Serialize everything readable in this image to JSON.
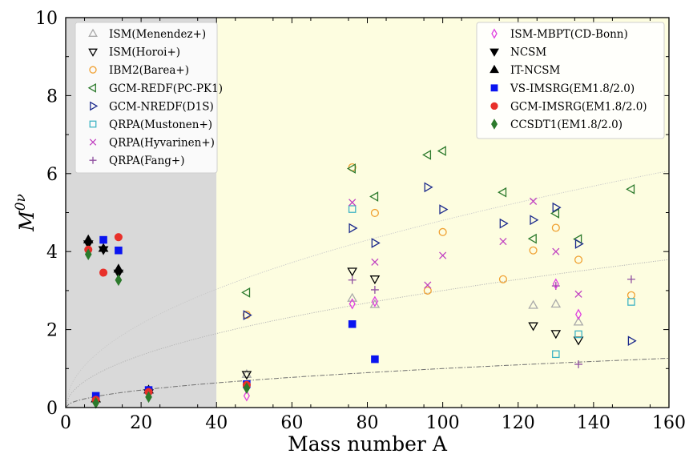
{
  "chart_data": {
    "type": "scatter",
    "title": "",
    "xlabel": "Mass number A",
    "ylabel": "M",
    "ylabel_sup": "0ν",
    "xlim": [
      0,
      160
    ],
    "ylim": [
      0,
      10
    ],
    "xticks": [
      0,
      20,
      40,
      60,
      80,
      100,
      120,
      140,
      160
    ],
    "yticks": [
      0,
      2,
      4,
      6,
      8,
      10
    ],
    "grid": false,
    "regions": [
      {
        "x": [
          0,
          40
        ],
        "color": "#d9d9d9"
      },
      {
        "x": [
          40,
          160
        ],
        "color": "#fdfde0"
      }
    ],
    "legends": [
      "top-left",
      "top-right"
    ],
    "curves": [
      {
        "coef": 0.48,
        "style": "dotted",
        "color": "#c8c8c8"
      },
      {
        "coef": 0.3,
        "style": "dotted",
        "color": "#b4b4b4"
      },
      {
        "coef": 0.1,
        "style": "dashdot",
        "color": "#707070"
      }
    ],
    "series": [
      {
        "name": "ISM(Menendez+)",
        "legend": 0,
        "marker": "tri-up-open",
        "color": "#a9a9a9",
        "points": [
          [
            48,
            0.85
          ],
          [
            76,
            2.8
          ],
          [
            82,
            2.64
          ],
          [
            124,
            2.62
          ],
          [
            130,
            2.65
          ],
          [
            136,
            2.19
          ]
        ]
      },
      {
        "name": "ISM(Horoi+)",
        "legend": 0,
        "marker": "tri-down-open",
        "color": "#000000",
        "points": [
          [
            48,
            0.85
          ],
          [
            76,
            3.5
          ],
          [
            82,
            3.3
          ],
          [
            124,
            2.1
          ],
          [
            130,
            1.9
          ],
          [
            136,
            1.73
          ]
        ]
      },
      {
        "name": "IBM2(Barea+)",
        "legend": 0,
        "marker": "circle-open",
        "color": "#f0a030",
        "points": [
          [
            48,
            2.38
          ],
          [
            76,
            6.16
          ],
          [
            82,
            4.99
          ],
          [
            96,
            3.0
          ],
          [
            100,
            4.5
          ],
          [
            116,
            3.29
          ],
          [
            124,
            4.03
          ],
          [
            130,
            4.61
          ],
          [
            136,
            3.79
          ],
          [
            150,
            2.88
          ]
        ]
      },
      {
        "name": "GCM-REDF(PC-PK1)",
        "legend": 0,
        "marker": "tri-left-open",
        "color": "#2c7a2c",
        "points": [
          [
            48,
            2.95
          ],
          [
            76,
            6.13
          ],
          [
            82,
            5.41
          ],
          [
            96,
            6.48
          ],
          [
            100,
            6.58
          ],
          [
            116,
            5.52
          ],
          [
            124,
            4.33
          ],
          [
            130,
            4.98
          ],
          [
            136,
            4.32
          ],
          [
            150,
            5.6
          ]
        ]
      },
      {
        "name": "GCM-NREDF(D1S)",
        "legend": 0,
        "marker": "tri-right-open",
        "color": "#1c2a8c",
        "points": [
          [
            48,
            2.37
          ],
          [
            76,
            4.6
          ],
          [
            82,
            4.22
          ],
          [
            96,
            5.65
          ],
          [
            100,
            5.08
          ],
          [
            116,
            4.72
          ],
          [
            124,
            4.81
          ],
          [
            130,
            5.13
          ],
          [
            136,
            4.2
          ],
          [
            150,
            1.71
          ]
        ]
      },
      {
        "name": "QRPA(Mustonen+)",
        "legend": 0,
        "marker": "square-open",
        "color": "#40b4c4",
        "points": [
          [
            76,
            5.09
          ],
          [
            130,
            1.37
          ],
          [
            136,
            1.88
          ],
          [
            150,
            2.71
          ]
        ]
      },
      {
        "name": "QRPA(Hyvarinen+)",
        "legend": 0,
        "marker": "cross-x",
        "color": "#c040c0",
        "points": [
          [
            76,
            5.26
          ],
          [
            82,
            3.73
          ],
          [
            96,
            3.14
          ],
          [
            100,
            3.9
          ],
          [
            116,
            4.26
          ],
          [
            124,
            5.29
          ],
          [
            130,
            4.0
          ],
          [
            136,
            2.91
          ]
        ]
      },
      {
        "name": "QRPA(Fang+)",
        "legend": 0,
        "marker": "plus",
        "color": "#9050a0",
        "points": [
          [
            76,
            3.27
          ],
          [
            82,
            3.02
          ],
          [
            130,
            3.12
          ],
          [
            136,
            1.11
          ],
          [
            150,
            3.29
          ]
        ]
      },
      {
        "name": "ISM-MBPT(CD-Bonn)",
        "legend": 1,
        "marker": "diamond-open",
        "color": "#e040e0",
        "points": [
          [
            48,
            0.3
          ],
          [
            76,
            2.66
          ],
          [
            82,
            2.72
          ],
          [
            130,
            3.17
          ],
          [
            136,
            2.39
          ]
        ]
      },
      {
        "name": "NCSM",
        "legend": 1,
        "marker": "tri-down-filled",
        "color": "#000000",
        "points": [
          [
            6,
            4.2
          ],
          [
            10,
            4.05
          ],
          [
            14,
            3.45
          ],
          [
            22,
            0.38
          ]
        ]
      },
      {
        "name": "IT-NCSM",
        "legend": 1,
        "marker": "tri-up-filled",
        "color": "#000000",
        "points": [
          [
            6,
            4.3
          ],
          [
            10,
            4.08
          ],
          [
            14,
            3.55
          ],
          [
            22,
            0.45
          ],
          [
            8,
            0.22
          ]
        ]
      },
      {
        "name": "VS-IMSRG(EM1.8/2.0)",
        "legend": 1,
        "marker": "square-filled",
        "color": "#0a14f0",
        "points": [
          [
            8,
            0.3
          ],
          [
            10,
            4.3
          ],
          [
            14,
            4.03
          ],
          [
            22,
            0.45
          ],
          [
            48,
            0.6
          ],
          [
            76,
            2.14
          ],
          [
            82,
            1.24
          ]
        ]
      },
      {
        "name": "GCM-IMSRG(EM1.8/2.0)",
        "legend": 1,
        "marker": "circle-filled",
        "color": "#e8302a",
        "points": [
          [
            6,
            4.05
          ],
          [
            8,
            0.2
          ],
          [
            10,
            3.46
          ],
          [
            14,
            4.37
          ],
          [
            22,
            0.4
          ],
          [
            48,
            0.58
          ]
        ]
      },
      {
        "name": "CCSDT1(EM1.8/2.0)",
        "legend": 1,
        "marker": "diamond-filled",
        "color": "#2c7a2c",
        "points": [
          [
            6,
            3.93
          ],
          [
            8,
            0.12
          ],
          [
            14,
            3.27
          ],
          [
            22,
            0.27
          ],
          [
            48,
            0.5
          ]
        ]
      }
    ]
  }
}
